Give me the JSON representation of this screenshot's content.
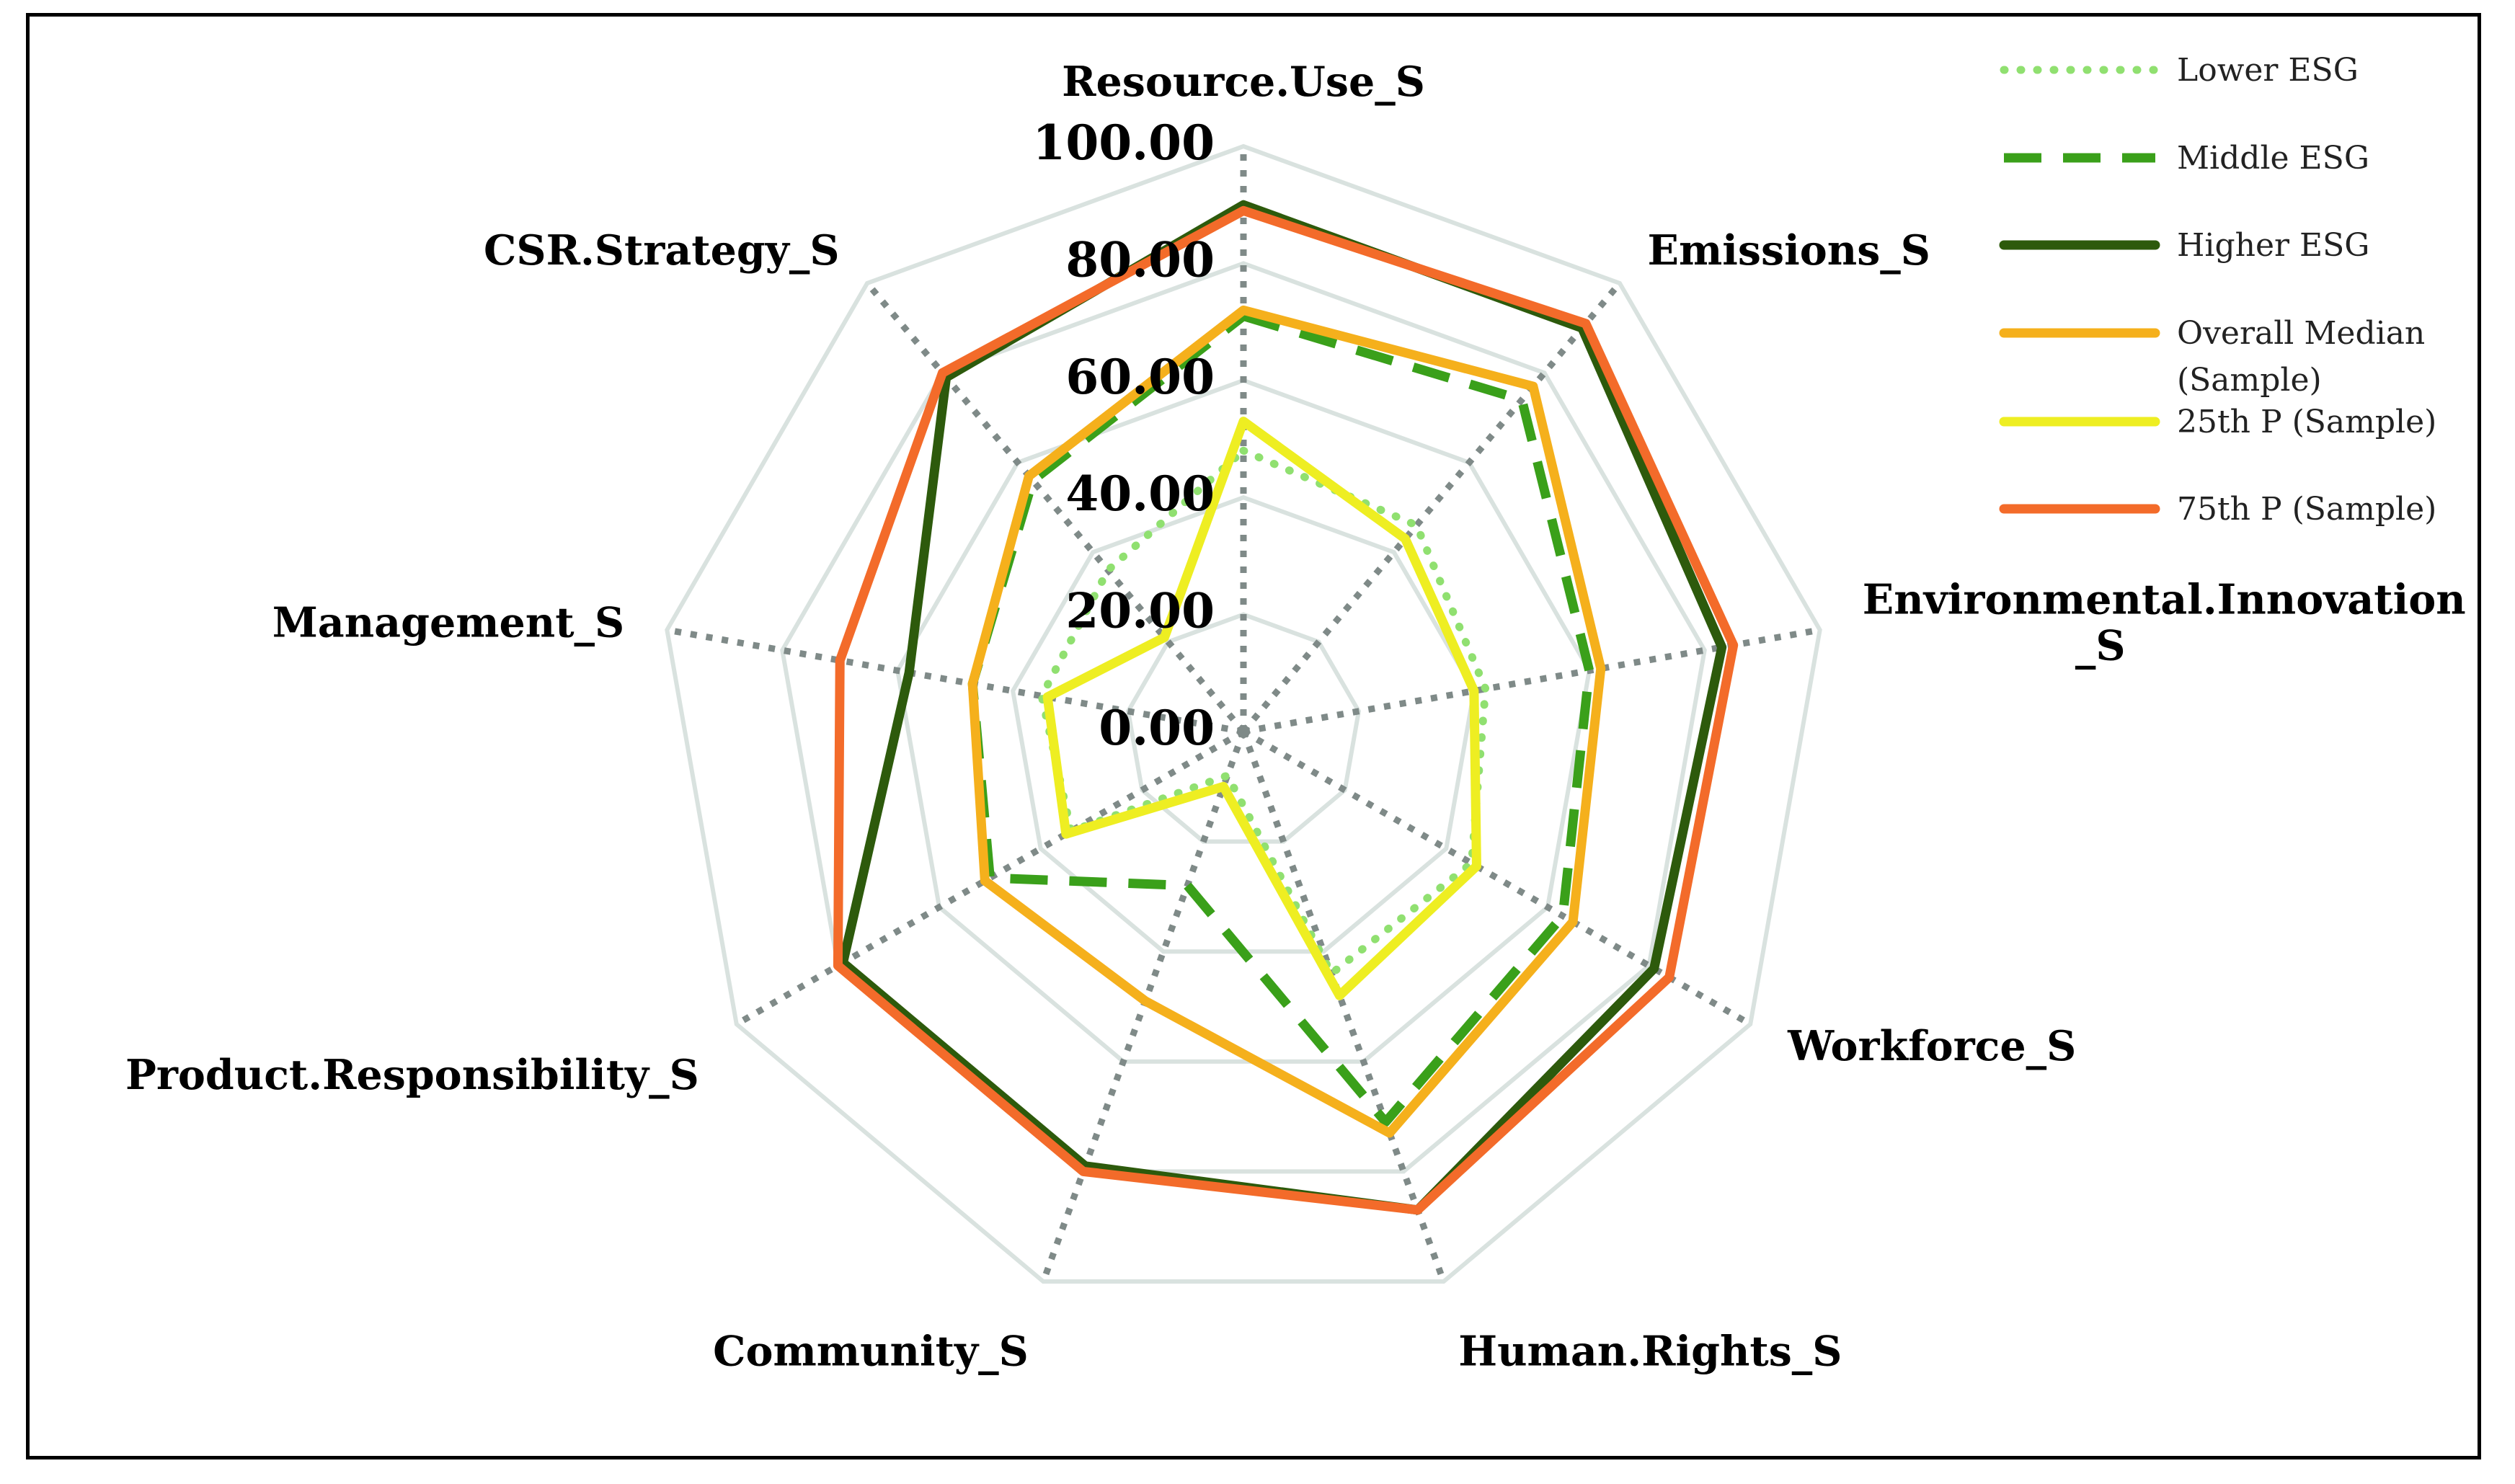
{
  "chart_data": {
    "type": "radar",
    "title": "",
    "axes": [
      "Resource.Use_S",
      "Emissions_S",
      "Environmental.Innovation_S",
      "Workforce_S",
      "Human.Rights_S",
      "Community_S",
      "Product.Responsibility_S",
      "Management_S",
      "CSR.Strategy_S"
    ],
    "axis_label_lines": [
      [
        "Resource.Use_S"
      ],
      [
        "Emissions_S"
      ],
      [
        "Environmental.Innovation",
        "_S"
      ],
      [
        "Workforce_S"
      ],
      [
        "Human.Rights_S"
      ],
      [
        "Community_S"
      ],
      [
        "Product.Responsibility_S"
      ],
      [
        "Management_S"
      ],
      [
        "CSR.Strategy_S"
      ]
    ],
    "r_ticks": [
      "0.00",
      "20.00",
      "40.00",
      "60.00",
      "80.00",
      "100.00"
    ],
    "r_range": [
      0,
      100
    ],
    "grid_rings": [
      20,
      40,
      60,
      80,
      100
    ],
    "series": [
      {
        "name": "Lower ESG",
        "values": [
          48,
          46,
          42,
          45,
          44,
          8,
          34,
          35,
          36
        ],
        "color": "#90e070",
        "style": "dotted"
      },
      {
        "name": "Middle ESG",
        "values": [
          71,
          74,
          60,
          63,
          71,
          28,
          50,
          47,
          56
        ],
        "color": "#3aa01a",
        "style": "dashed"
      },
      {
        "name": "Higher ESG",
        "values": [
          90,
          90,
          83,
          81,
          87,
          79,
          79,
          58,
          79
        ],
        "color": "#2d5a0c",
        "style": "solid"
      },
      {
        "name": "Overall Median (Sample)",
        "values": [
          72,
          77,
          62,
          65,
          73,
          49,
          51,
          47,
          57
        ],
        "color": "#f5b01c",
        "style": "solid"
      },
      {
        "name": "25th P (Sample)",
        "values": [
          53,
          43,
          40,
          46,
          48,
          10,
          35,
          34,
          21
        ],
        "color": "#eeee22",
        "style": "solid"
      },
      {
        "name": "75th P (Sample)",
        "values": [
          89,
          91,
          85,
          84,
          87,
          80,
          80,
          70,
          80
        ],
        "color": "#f36b2a",
        "style": "solid"
      }
    ],
    "legend": {
      "position": "top-right",
      "entries": [
        [
          "Lower ESG"
        ],
        [
          "Middle ESG"
        ],
        [
          "Higher ESG"
        ],
        [
          "Overall Median",
          "(Sample)"
        ],
        [
          "25th P (Sample)"
        ],
        [
          "75th P (Sample)"
        ]
      ]
    },
    "colors": {
      "grid": "#d9e2df",
      "spoke": "#7f8a88",
      "frame": "#000000"
    }
  }
}
